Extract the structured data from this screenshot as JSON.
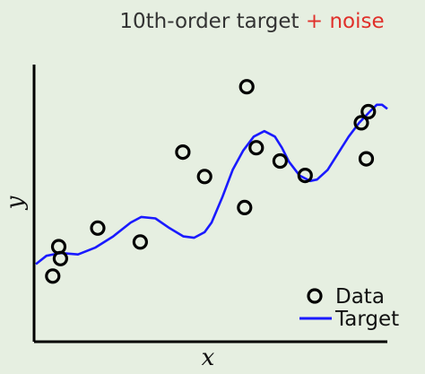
{
  "chart_data": {
    "type": "scatter",
    "title": {
      "part1": "10th-order target ",
      "part2": "+ noise",
      "part1_color": "#333333",
      "part2_color": "#e0302a"
    },
    "xlabel": "x",
    "ylabel": "y",
    "xlim": [
      0,
      1
    ],
    "ylim": [
      0,
      1
    ],
    "grid": false,
    "legend_placement": "bottom-right",
    "series": [
      {
        "name": "Data",
        "kind": "markers",
        "marker": "open-circle",
        "color": "#000000",
        "x": [
          0.048,
          0.065,
          0.07,
          0.176,
          0.297,
          0.418,
          0.48,
          0.594,
          0.6,
          0.627,
          0.695,
          0.766,
          0.926,
          0.946,
          0.94
        ],
        "y": [
          0.237,
          0.343,
          0.3,
          0.41,
          0.36,
          0.684,
          0.596,
          0.484,
          0.92,
          0.7,
          0.652,
          0.6,
          0.79,
          0.83,
          0.66
        ]
      },
      {
        "name": "Target",
        "kind": "line",
        "color": "#1a1aff",
        "x": [
          0.0,
          0.03,
          0.07,
          0.12,
          0.17,
          0.22,
          0.27,
          0.3,
          0.34,
          0.38,
          0.42,
          0.45,
          0.48,
          0.5,
          0.53,
          0.56,
          0.59,
          0.62,
          0.65,
          0.68,
          0.7,
          0.72,
          0.75,
          0.78,
          0.8,
          0.83,
          0.86,
          0.89,
          0.92,
          0.95,
          0.97,
          0.985,
          1.0
        ],
        "y": [
          0.28,
          0.31,
          0.32,
          0.315,
          0.34,
          0.38,
          0.43,
          0.45,
          0.445,
          0.41,
          0.38,
          0.375,
          0.395,
          0.43,
          0.52,
          0.62,
          0.69,
          0.74,
          0.76,
          0.74,
          0.7,
          0.65,
          0.6,
          0.58,
          0.585,
          0.62,
          0.68,
          0.74,
          0.79,
          0.83,
          0.855,
          0.855,
          0.84
        ]
      }
    ]
  }
}
